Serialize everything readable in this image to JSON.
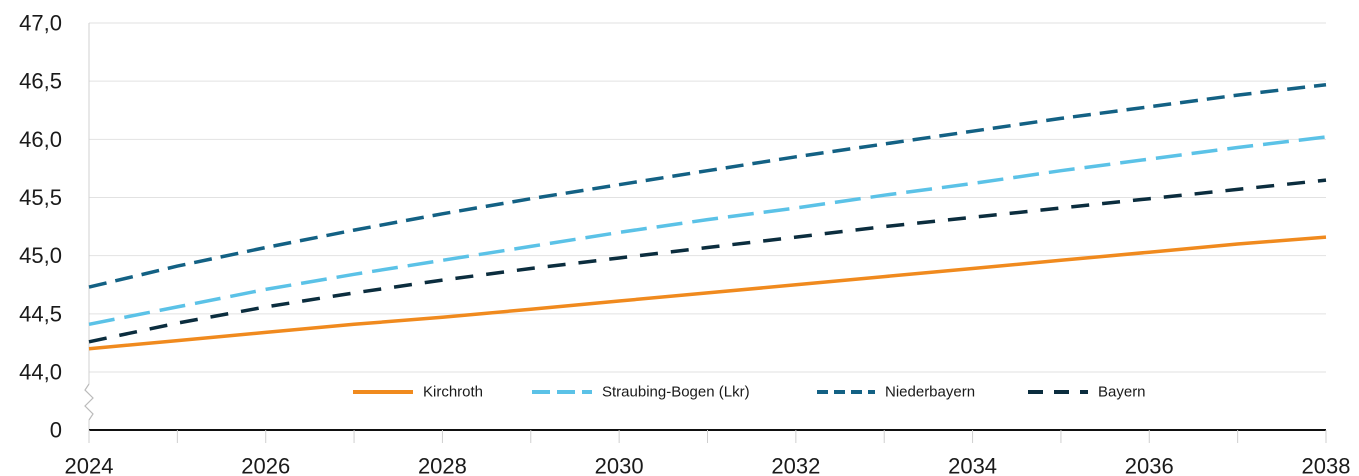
{
  "chart_data": {
    "type": "line",
    "x": [
      2024,
      2025,
      2026,
      2027,
      2028,
      2029,
      2030,
      2031,
      2032,
      2033,
      2034,
      2035,
      2036,
      2037,
      2038
    ],
    "x_ticks": [
      "2024",
      "2026",
      "2028",
      "2030",
      "2032",
      "2034",
      "2036",
      "2038"
    ],
    "xlim": [
      2024,
      2038
    ],
    "y_ticks": [
      "0",
      "44,0",
      "44,5",
      "45,0",
      "45,5",
      "46,0",
      "46,5",
      "47,0"
    ],
    "y_tick_values": [
      43.5,
      44.0,
      44.5,
      45.0,
      45.5,
      46.0,
      46.5,
      47.0
    ],
    "ylim": [
      43.5,
      47.0
    ],
    "y_axis_break": true,
    "grid": "horizontal",
    "legend_position": "bottom",
    "series": [
      {
        "name": "Kirchroth",
        "color": "#f08a1e",
        "dash": "solid",
        "values": [
          44.2,
          44.27,
          44.34,
          44.41,
          44.47,
          44.54,
          44.61,
          44.68,
          44.75,
          44.82,
          44.89,
          44.96,
          45.03,
          45.1,
          45.16
        ]
      },
      {
        "name": "Straubing-Bogen (Lkr)",
        "color": "#5bc2e7",
        "dash": "long",
        "values": [
          44.41,
          44.56,
          44.71,
          44.84,
          44.96,
          45.08,
          45.2,
          45.31,
          45.41,
          45.52,
          45.62,
          45.73,
          45.83,
          45.93,
          46.02
        ]
      },
      {
        "name": "Niederbayern",
        "color": "#136184",
        "dash": "medium",
        "values": [
          44.73,
          44.91,
          45.07,
          45.22,
          45.36,
          45.49,
          45.61,
          45.73,
          45.85,
          45.96,
          46.07,
          46.18,
          46.28,
          46.38,
          46.47
        ]
      },
      {
        "name": "Bayern",
        "color": "#0b2d3e",
        "dash": "dash",
        "values": [
          44.26,
          44.42,
          44.56,
          44.68,
          44.79,
          44.89,
          44.98,
          45.07,
          45.16,
          45.25,
          45.33,
          45.41,
          45.49,
          45.57,
          45.65
        ]
      }
    ]
  }
}
